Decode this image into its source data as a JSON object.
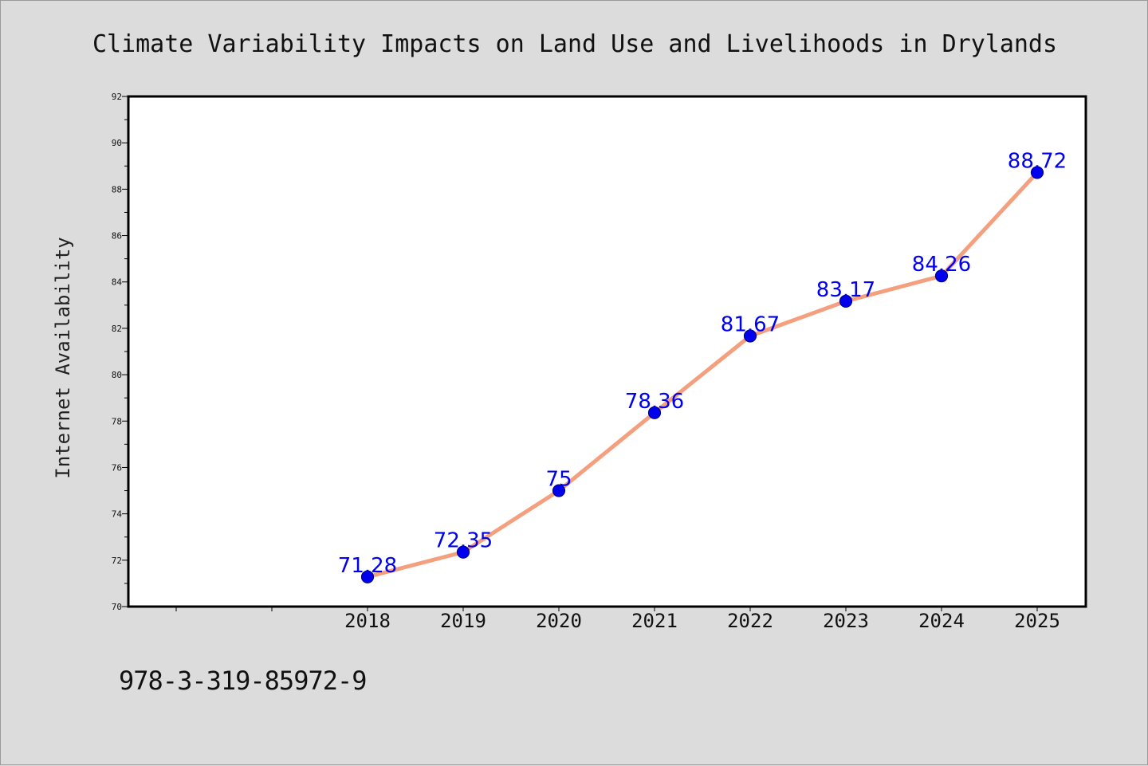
{
  "chart_data": {
    "type": "line",
    "title": "Climate Variability Impacts on Land Use and Livelihoods in Drylands",
    "xlabel": "",
    "ylabel": "Internet Availability",
    "x": [
      "2018",
      "2019",
      "2020",
      "2021",
      "2022",
      "2023",
      "2024",
      "2025"
    ],
    "series": [
      {
        "values": [
          71.28,
          72.35,
          75,
          78.36,
          81.67,
          83.17,
          84.26,
          88.72
        ],
        "data_labels": [
          "71.28",
          "72.35",
          "75",
          "78.36",
          "81.67",
          "83.17",
          "84.26",
          "88.72"
        ]
      }
    ],
    "ylim": [
      70,
      92
    ],
    "y_major_ticks": [
      70,
      72,
      74,
      76,
      78,
      80,
      82,
      84,
      86,
      88,
      90,
      92
    ],
    "y_minor_step": 1,
    "x_extra_ticks_left": 2,
    "grid": false,
    "legend": "none",
    "colors": {
      "line": "#f4a07e",
      "marker": "#0000ee",
      "marker_edge": "#000088",
      "data_label": "#0000ee",
      "background": "#dcdcdc",
      "plot_background": "#ffffff"
    }
  },
  "footer": {
    "code": "978-3-319-85972-9"
  }
}
